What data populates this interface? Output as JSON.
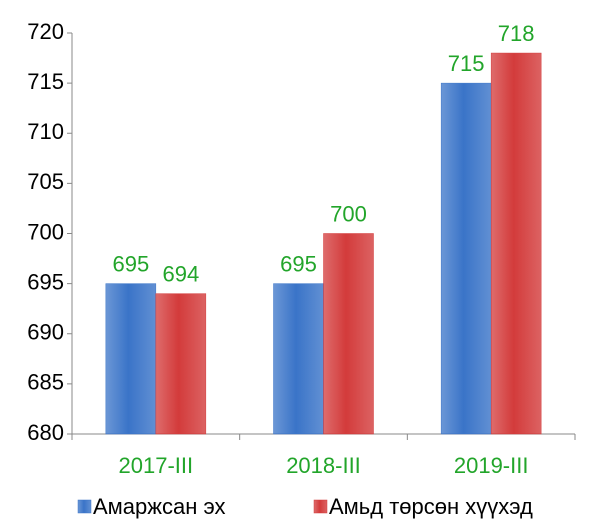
{
  "chart_data": {
    "type": "bar",
    "categories": [
      "2017-III",
      "2018-III",
      "2019-III"
    ],
    "series": [
      {
        "name": "Амаржсан эх",
        "color": "#3a74c8",
        "values": [
          695,
          695,
          715
        ]
      },
      {
        "name": "Амьд төрсөн хүүхэд",
        "color": "#d33b3b",
        "values": [
          694,
          700,
          718
        ]
      }
    ],
    "ylim": [
      680,
      720
    ],
    "yticks": [
      680,
      685,
      690,
      695,
      700,
      705,
      710,
      715,
      720
    ],
    "grid": false,
    "legend": "bottom",
    "label_color": "#22a52a",
    "category_color": "#22a52a"
  }
}
